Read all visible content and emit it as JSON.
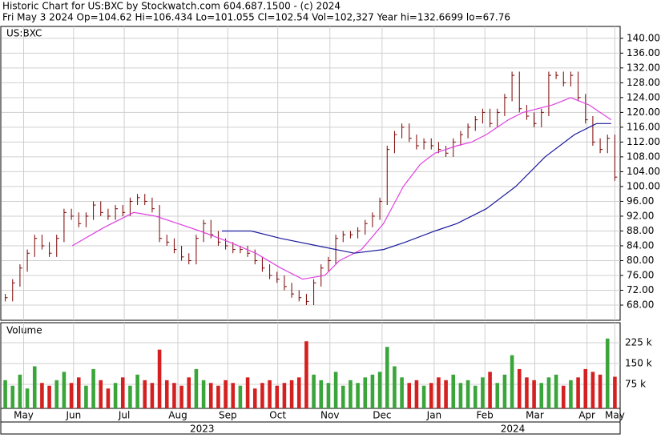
{
  "chart_data": {
    "type": "ohlc-close",
    "title": "Historic Chart for US:BXC by Stockwatch.com 604.687.1500 - (c) 2024",
    "subtitle": "Fri May  3 2024  Op=104.62  Hi=106.434  Lo=101.055  Cl=102.54  Vol=102,327  Year hi=132.6699  lo=67.76",
    "symbol": "US:BXC",
    "volume_label": "Volume",
    "xlim": [
      0,
      84
    ],
    "xticks": [
      {
        "value": 3,
        "label": "May"
      },
      {
        "value": 9.8,
        "label": "Jun"
      },
      {
        "value": 16.7,
        "label": "Jul"
      },
      {
        "value": 24,
        "label": "Aug"
      },
      {
        "value": 30.8,
        "label": "Sep"
      },
      {
        "value": 37.6,
        "label": "Oct"
      },
      {
        "value": 44.7,
        "label": "Nov"
      },
      {
        "value": 51.8,
        "label": "Dec"
      },
      {
        "value": 58.9,
        "label": "Jan"
      },
      {
        "value": 65.8,
        "label": "Feb"
      },
      {
        "value": 72.6,
        "label": "Mar"
      },
      {
        "value": 79.7,
        "label": "Apr"
      },
      {
        "value": 83.5,
        "label": "May"
      }
    ],
    "years": [
      {
        "value": 27.3,
        "label": "2023"
      },
      {
        "value": 69.6,
        "label": "2024"
      }
    ],
    "ylim": [
      63.9,
      143.2
    ],
    "yticks": [
      {
        "value": 68,
        "label": "68.00"
      },
      {
        "value": 72,
        "label": "72.00"
      },
      {
        "value": 76,
        "label": "76.00"
      },
      {
        "value": 80,
        "label": "80.00"
      },
      {
        "value": 84,
        "label": "84.00"
      },
      {
        "value": 88,
        "label": "88.00"
      },
      {
        "value": 92,
        "label": "92.00"
      },
      {
        "value": 96,
        "label": "96.00"
      },
      {
        "value": 100,
        "label": "100.00"
      },
      {
        "value": 104,
        "label": "104.00"
      },
      {
        "value": 108,
        "label": "108.00"
      },
      {
        "value": 112,
        "label": "112.00"
      },
      {
        "value": 116,
        "label": "116.00"
      },
      {
        "value": 120,
        "label": "120.00"
      },
      {
        "value": 124,
        "label": "124.00"
      },
      {
        "value": 128,
        "label": "128.00"
      },
      {
        "value": 132,
        "label": "132.00"
      },
      {
        "value": 136,
        "label": "136.00"
      },
      {
        "value": 140,
        "label": "140.00"
      }
    ],
    "grid": true,
    "price_color": "#7a0000",
    "close": [
      70,
      74,
      78,
      82,
      86,
      84,
      82,
      86,
      93,
      92,
      90,
      92,
      95,
      93,
      92,
      94,
      93,
      96,
      97,
      96,
      94,
      86,
      85,
      83,
      81,
      80,
      86,
      90,
      87,
      85,
      84,
      83,
      83,
      82,
      80,
      78,
      76,
      75,
      73,
      71,
      70,
      69,
      74,
      78,
      80,
      86,
      87,
      87,
      88,
      90,
      92,
      96,
      110,
      114,
      116,
      113,
      111,
      112,
      111,
      110,
      109,
      112,
      114,
      116,
      118,
      120,
      117,
      120,
      124,
      130,
      121,
      119,
      117,
      120,
      130,
      130,
      128,
      130,
      124,
      118,
      112,
      110,
      113,
      102.54
    ],
    "series": [
      {
        "color": "#e040e0",
        "x": [
          9.6,
          14,
          18,
          21,
          24,
          27,
          31,
          34.6,
          38,
          41,
          44,
          46,
          49,
          52,
          54.7,
          57,
          59,
          62,
          64,
          66,
          69,
          71,
          75,
          77.5,
          80,
          83
        ],
        "values": [
          84,
          89,
          93,
          92,
          90,
          88,
          85,
          82,
          78,
          75,
          76,
          80,
          83,
          90,
          100,
          106,
          109,
          111,
          112,
          114,
          118,
          120,
          122,
          124,
          122,
          118
        ]
      },
      {
        "color": "#1a1a9c",
        "x": [
          30,
          34,
          38,
          43,
          48,
          52,
          55,
          59,
          62,
          66,
          70,
          74,
          78,
          81,
          83
        ],
        "values": [
          88,
          88,
          86,
          84,
          82,
          83,
          85,
          88,
          90,
          94,
          100,
          108,
          114,
          117,
          117
        ]
      }
    ],
    "volume": {
      "ylim": [
        0,
        297000
      ],
      "yticks": [
        {
          "value": 75000,
          "label": "75 k"
        },
        {
          "value": 150000,
          "label": "150 k"
        },
        {
          "value": 225000,
          "label": "225 k"
        }
      ],
      "up_color": "#3aa53a",
      "down_color": "#d42020",
      "values": [
        90000,
        70000,
        110000,
        60000,
        140000,
        80000,
        70000,
        90000,
        120000,
        80000,
        100000,
        70000,
        130000,
        90000,
        60000,
        80000,
        100000,
        70000,
        110000,
        90000,
        80000,
        200000,
        90000,
        80000,
        70000,
        100000,
        130000,
        90000,
        80000,
        70000,
        90000,
        80000,
        70000,
        100000,
        60000,
        80000,
        90000,
        70000,
        80000,
        90000,
        100000,
        230000,
        110000,
        90000,
        80000,
        120000,
        70000,
        90000,
        80000,
        100000,
        110000,
        120000,
        210000,
        140000,
        100000,
        80000,
        90000,
        70000,
        80000,
        100000,
        90000,
        110000,
        80000,
        90000,
        70000,
        100000,
        120000,
        80000,
        110000,
        180000,
        130000,
        100000,
        90000,
        80000,
        100000,
        110000,
        70000,
        90000,
        100000,
        130000,
        120000,
        110000,
        240000,
        102327
      ]
    }
  }
}
